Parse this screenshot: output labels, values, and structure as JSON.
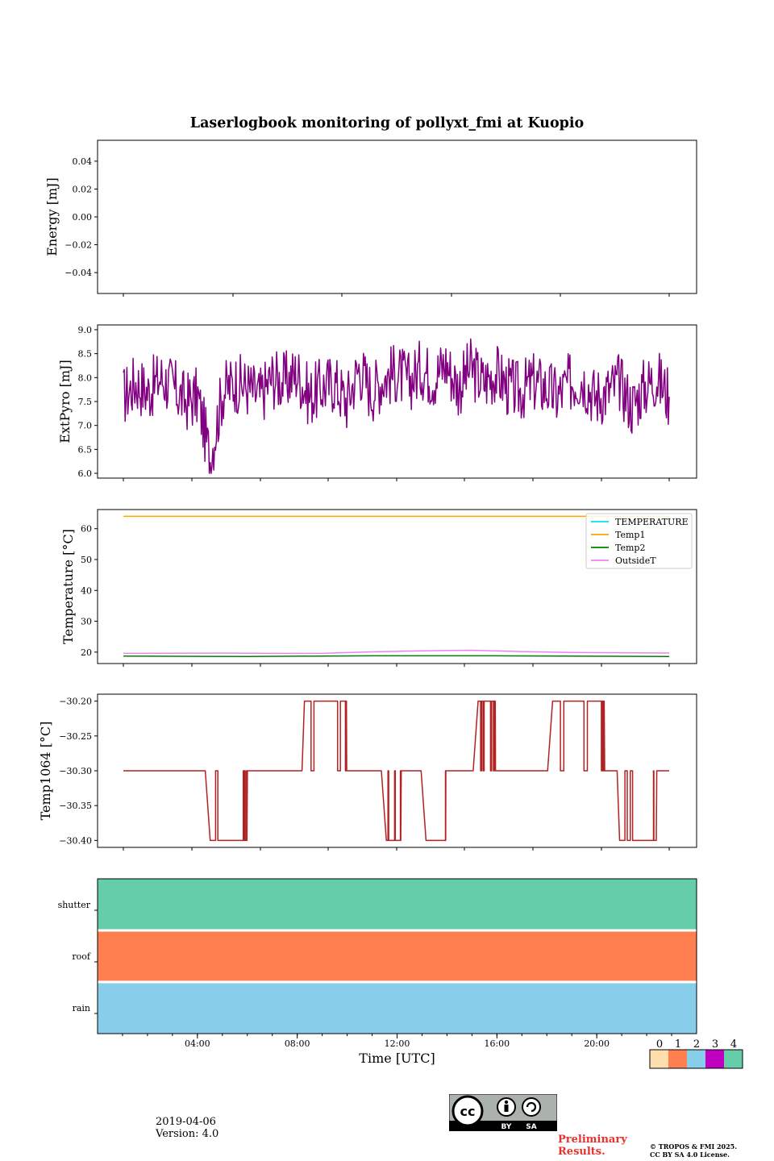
{
  "title": "Laserlogbook monitoring of pollyxt_fmi at Kuopio",
  "chart_data": [
    {
      "type": "line",
      "id": "energy",
      "ylabel": "Energy [mJ]",
      "ylim": [
        -0.055,
        0.055
      ],
      "yticks": [
        0.04,
        0.02,
        0.0,
        -0.02,
        -0.04
      ],
      "ytick_labels": [
        "0.04",
        "0.02",
        "0.00",
        "−0.02",
        "−0.04"
      ],
      "series": []
    },
    {
      "type": "line",
      "id": "extpyro",
      "ylabel": "ExtPyro [mJ]",
      "ylim": [
        5.9,
        9.1
      ],
      "yticks": [
        9.0,
        8.5,
        8.0,
        7.5,
        7.0,
        6.5,
        6.0
      ],
      "ytick_labels": [
        "9.0",
        "8.5",
        "8.0",
        "7.5",
        "7.0",
        "6.5",
        "6.0"
      ],
      "series": [
        {
          "name": "ExtPyro",
          "color": "#800080",
          "x": [
            0.0,
            0.5,
            1.0,
            1.5,
            2.0,
            2.5,
            3.0,
            3.5,
            4.0,
            4.5,
            5.0,
            5.5,
            6.0,
            6.5,
            7.0,
            7.5,
            8.0,
            8.5,
            9.0,
            9.5,
            10.0,
            10.5,
            11.0,
            11.5,
            12.0,
            12.5,
            13.0,
            13.5,
            14.0,
            14.5,
            15.0,
            15.5,
            16.0,
            16.5,
            17.0,
            17.5,
            18.0,
            18.5,
            19.0,
            19.5,
            20.0,
            20.5,
            21.0,
            21.5,
            22.0
          ],
          "values": [
            7.6,
            7.9,
            7.7,
            8.0,
            7.8,
            7.5,
            7.6,
            6.3,
            7.7,
            7.9,
            7.8,
            7.6,
            8.0,
            7.9,
            8.1,
            7.6,
            7.8,
            7.9,
            7.5,
            8.2,
            7.7,
            8.0,
            8.1,
            7.9,
            8.2,
            8.0,
            8.3,
            7.8,
            8.2,
            7.9,
            8.1,
            7.8,
            7.7,
            7.9,
            7.8,
            7.6,
            7.9,
            8.0,
            7.6,
            7.7,
            7.9,
            7.4,
            7.8,
            8.0,
            7.6
          ]
        }
      ]
    },
    {
      "type": "line",
      "id": "temperature",
      "ylabel": "Temperature [°C]",
      "ylim": [
        16.3,
        66.2
      ],
      "yticks": [
        60,
        50,
        40,
        30,
        20
      ],
      "ytick_labels": [
        "60",
        "50",
        "40",
        "30",
        "20"
      ],
      "legend_position": "top-right",
      "series": [
        {
          "name": "TEMPERATURE",
          "color": "#00e5ee",
          "x": [],
          "values": []
        },
        {
          "name": "Temp1",
          "color": "#ffa500",
          "x": [
            0.0,
            22.0
          ],
          "values": [
            64.0,
            64.0
          ]
        },
        {
          "name": "Temp2",
          "color": "#008000",
          "x": [
            0.0,
            5.0,
            10.0,
            15.0,
            22.0
          ],
          "values": [
            18.7,
            18.6,
            18.8,
            18.8,
            18.6
          ]
        },
        {
          "name": "OutsideT",
          "color": "#ee82ee",
          "x": [
            0.0,
            4.0,
            6.0,
            8.0,
            10.0,
            12.0,
            14.0,
            16.0,
            18.0,
            20.0,
            22.0
          ],
          "values": [
            19.6,
            19.7,
            19.6,
            19.6,
            20.1,
            20.4,
            20.6,
            20.2,
            19.9,
            19.8,
            19.7
          ]
        }
      ]
    },
    {
      "type": "line",
      "id": "temp1064",
      "ylabel": "Temp1064 [°C]",
      "ylim": [
        -30.41,
        -30.19
      ],
      "yticks": [
        -30.2,
        -30.25,
        -30.3,
        -30.35,
        -30.4
      ],
      "ytick_labels": [
        "−30.20",
        "−30.25",
        "−30.30",
        "−30.35",
        "−30.40"
      ],
      "series": [
        {
          "name": "Temp1064",
          "color": "#b22222",
          "x": [
            0.0,
            3.3,
            3.5,
            4.8,
            5.0,
            7.2,
            7.3,
            8.9,
            9.0,
            10.4,
            10.6,
            11.0,
            11.2,
            12.0,
            12.2,
            12.9,
            13.0,
            14.1,
            14.3,
            14.9,
            15.0,
            17.1,
            17.3,
            19.2,
            19.4,
            19.9,
            20.0,
            21.3,
            21.5,
            22.0
          ],
          "values": [
            -30.3,
            -30.3,
            -30.4,
            -30.4,
            -30.3,
            -30.3,
            -30.2,
            -30.2,
            -30.3,
            -30.3,
            -30.4,
            -30.4,
            -30.3,
            -30.3,
            -30.4,
            -30.4,
            -30.3,
            -30.3,
            -30.2,
            -30.2,
            -30.3,
            -30.3,
            -30.2,
            -30.2,
            -30.3,
            -30.3,
            -30.4,
            -30.4,
            -30.3,
            -30.3
          ]
        }
      ]
    },
    {
      "type": "heatmap",
      "id": "status",
      "rows": [
        "shutter",
        "roof",
        "rain"
      ],
      "row_values": [
        4,
        1,
        2
      ],
      "x_range": [
        0,
        24
      ],
      "xlabel": "Time [UTC]",
      "xticks": [
        4,
        8,
        12,
        16,
        20
      ],
      "xtick_labels": [
        "04:00",
        "08:00",
        "12:00",
        "16:00",
        "20:00"
      ],
      "colorbar": {
        "labels": [
          "0",
          "1",
          "2",
          "3",
          "4"
        ],
        "colors": [
          "#ffdead",
          "#ff7f50",
          "#87ceeb",
          "#c000c0",
          "#66cdaa"
        ]
      }
    }
  ],
  "footer": {
    "date": "2019-04-06",
    "version": "Version: 4.0",
    "preliminary_line1": "Preliminary",
    "preliminary_line2": "Results.",
    "copyright_line1": "© TROPOS & FMI 2025.",
    "copyright_line2": "CC BY SA 4.0 License.",
    "license_badge": {
      "mark": "cc",
      "by": "BY",
      "sa": "SA"
    }
  }
}
